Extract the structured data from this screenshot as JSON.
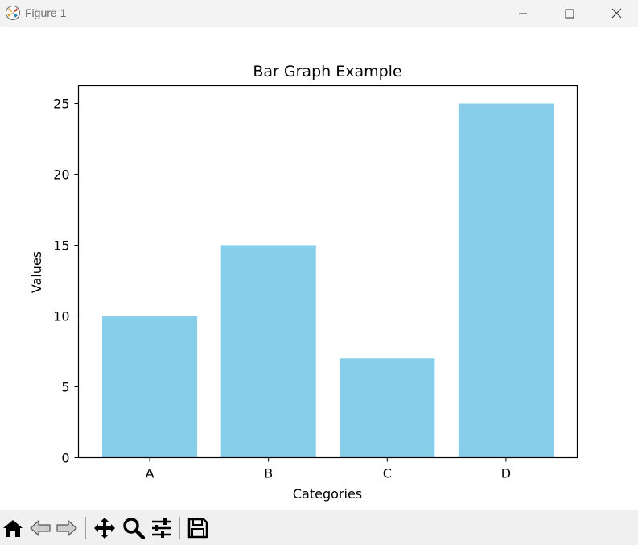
{
  "window": {
    "title": "Figure 1"
  },
  "colors": {
    "bar": "#87ceeb",
    "axis": "#000000",
    "text": "#000000"
  },
  "toolbar": {
    "tools": [
      "home-icon",
      "back-arrow-icon",
      "forward-arrow-icon",
      "pan-icon",
      "zoom-icon",
      "configure-subplots-icon",
      "save-icon"
    ]
  },
  "chart_data": {
    "type": "bar",
    "title": "Bar Graph Example",
    "xlabel": "Categories",
    "ylabel": "Values",
    "categories": [
      "A",
      "B",
      "C",
      "D"
    ],
    "values": [
      10,
      15,
      7,
      25
    ],
    "ylim": [
      0,
      26.25
    ],
    "yticks": [
      0,
      5,
      10,
      15,
      20,
      25
    ],
    "grid": false
  }
}
